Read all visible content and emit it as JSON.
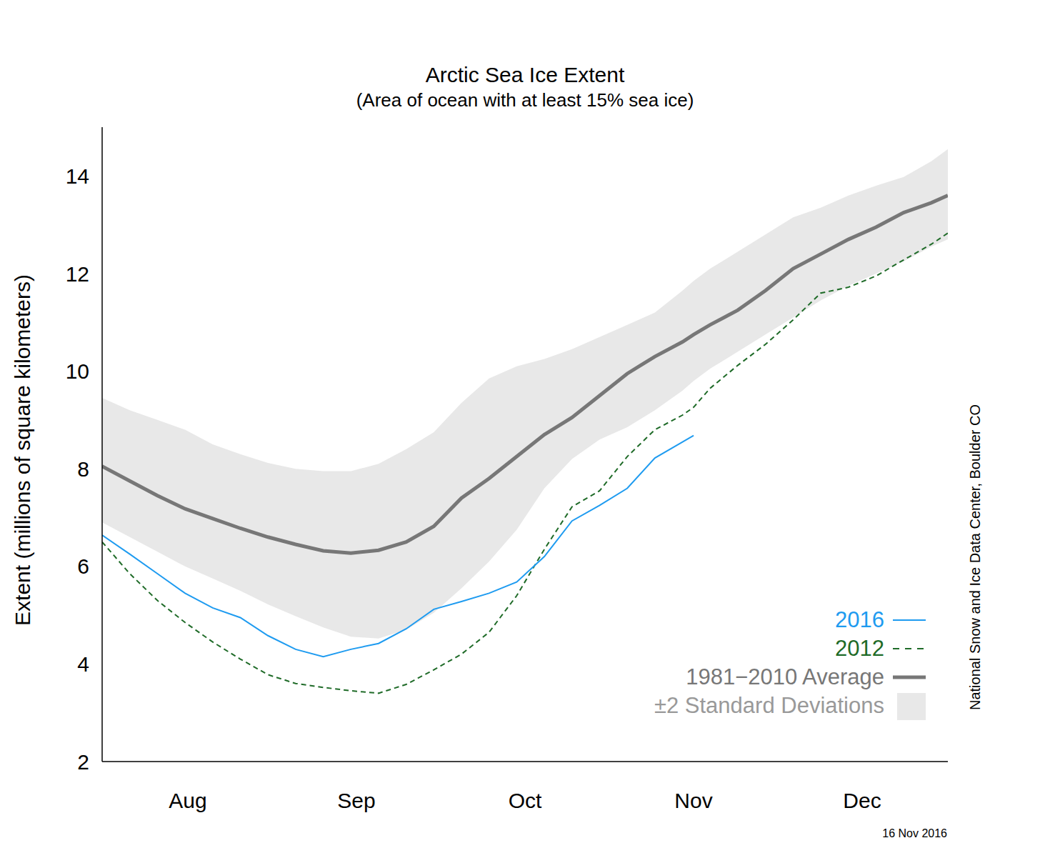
{
  "chart_data": {
    "type": "line",
    "title": "Arctic Sea Ice Extent",
    "subtitle": "(Area of ocean with at least 15% sea ice)",
    "y_label": "Extent (millions of square kilometers)",
    "x": [
      0,
      5,
      10,
      15,
      20,
      25,
      30,
      35,
      40,
      45,
      50,
      55,
      60,
      65,
      70,
      75,
      80,
      85,
      90,
      95,
      100,
      105,
      107,
      110,
      115,
      120,
      125,
      130,
      135,
      140,
      145,
      150,
      153
    ],
    "xlim": [
      0,
      153
    ],
    "xticks": [
      {
        "value": 15.5,
        "label": "Aug"
      },
      {
        "value": 46,
        "label": "Sep"
      },
      {
        "value": 76.5,
        "label": "Oct"
      },
      {
        "value": 107,
        "label": "Nov"
      },
      {
        "value": 137.5,
        "label": "Dec"
      }
    ],
    "ylim": [
      2,
      15
    ],
    "yticks": [
      2,
      4,
      6,
      8,
      10,
      12,
      14
    ],
    "legend": "lower right",
    "series": [
      {
        "name": "2016",
        "color": "#1e9bf0",
        "line_style": "solid",
        "values": [
          6.64,
          6.25,
          5.85,
          5.45,
          5.15,
          4.95,
          4.58,
          4.3,
          4.15,
          4.3,
          4.42,
          4.72,
          5.12,
          5.28,
          5.45,
          5.68,
          6.2,
          6.93,
          7.25,
          7.6,
          8.22,
          8.55,
          8.68,
          null,
          null,
          null,
          null,
          null,
          null,
          null,
          null,
          null,
          null
        ]
      },
      {
        "name": "2012",
        "color": "#1f6b28",
        "line_style": "dashed",
        "values": [
          6.5,
          5.85,
          5.3,
          4.85,
          4.45,
          4.1,
          3.78,
          3.6,
          3.52,
          3.45,
          3.4,
          3.58,
          3.88,
          4.2,
          4.65,
          5.4,
          6.35,
          7.22,
          7.55,
          8.25,
          8.8,
          9.1,
          9.26,
          9.65,
          10.12,
          10.55,
          11.05,
          11.6,
          11.72,
          11.95,
          12.28,
          12.6,
          12.83
        ]
      },
      {
        "name": "1981−2010 Average",
        "color": "#777777",
        "line_style": "thick",
        "values": [
          8.05,
          7.75,
          7.45,
          7.18,
          6.98,
          6.78,
          6.6,
          6.45,
          6.32,
          6.27,
          6.33,
          6.5,
          6.82,
          7.4,
          7.8,
          8.25,
          8.7,
          9.05,
          9.5,
          9.95,
          10.3,
          10.6,
          10.75,
          10.95,
          11.25,
          11.65,
          12.1,
          12.4,
          12.7,
          12.95,
          13.25,
          13.45,
          13.6
        ]
      }
    ],
    "band": {
      "name": "±2 Standard Deviations",
      "color": "#e8e8e8",
      "lower": [
        6.9,
        6.6,
        6.3,
        6.0,
        5.75,
        5.5,
        5.22,
        4.98,
        4.75,
        4.56,
        4.52,
        4.7,
        5.05,
        5.55,
        6.1,
        6.75,
        7.6,
        8.2,
        8.6,
        8.85,
        9.2,
        9.6,
        9.8,
        10.05,
        10.4,
        10.75,
        11.1,
        11.45,
        11.75,
        12.0,
        12.25,
        12.55,
        12.7
      ],
      "upper": [
        9.45,
        9.2,
        9.0,
        8.8,
        8.5,
        8.3,
        8.12,
        8.0,
        7.95,
        7.95,
        8.1,
        8.4,
        8.75,
        9.35,
        9.85,
        10.1,
        10.25,
        10.45,
        10.7,
        10.95,
        11.2,
        11.65,
        11.85,
        12.1,
        12.45,
        12.8,
        13.15,
        13.35,
        13.6,
        13.8,
        13.98,
        14.3,
        14.55
      ]
    },
    "annotations": [
      "National Snow and Ice Data Center, Boulder CO",
      "16 Nov 2016"
    ]
  }
}
